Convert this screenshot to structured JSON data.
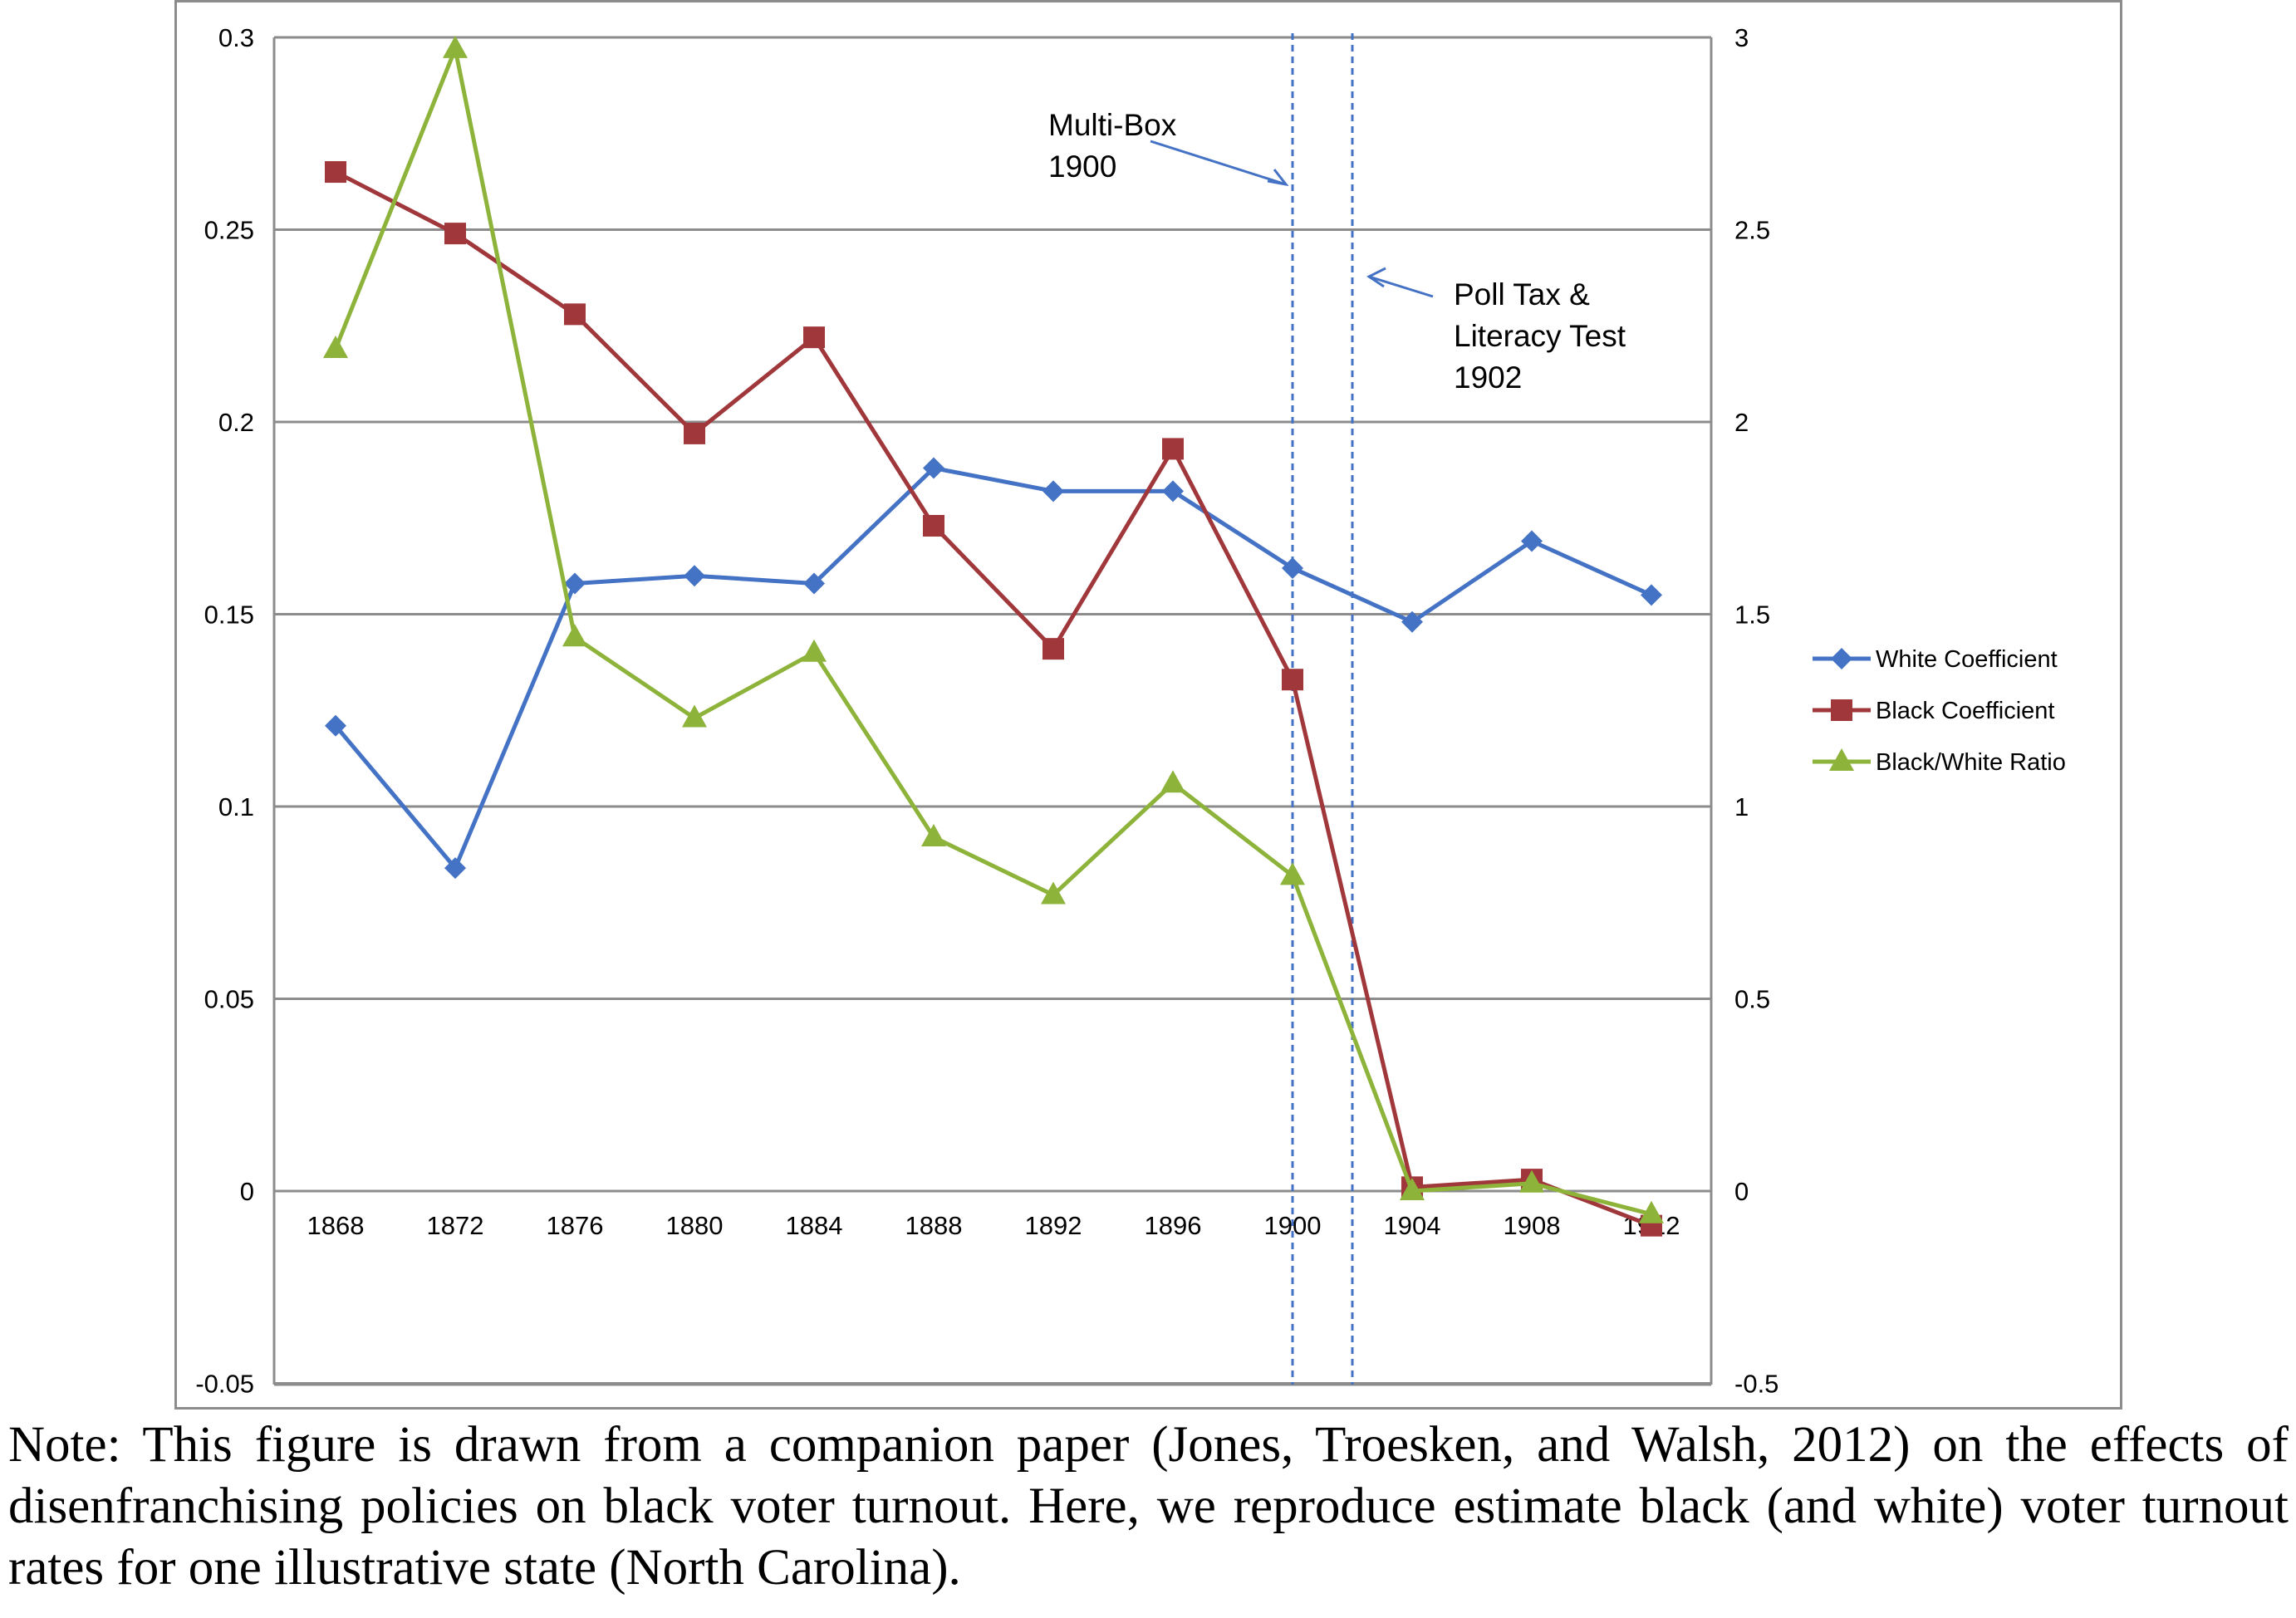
{
  "chart_data": {
    "type": "line",
    "title": "",
    "xlabel": "",
    "ylabel": "",
    "y2label": "",
    "categories": [
      "1868",
      "1872",
      "1876",
      "1880",
      "1884",
      "1888",
      "1892",
      "1896",
      "1900",
      "1904",
      "1908",
      "1912"
    ],
    "x": [
      1868,
      1872,
      1876,
      1880,
      1884,
      1888,
      1892,
      1896,
      1900,
      1904,
      1908,
      1912
    ],
    "ylim": [
      -0.05,
      0.3
    ],
    "y_ticks": [
      "-0.05",
      "0",
      "0.05",
      "0.1",
      "0.15",
      "0.2",
      "0.25",
      "0.3"
    ],
    "y_tick_values": [
      -0.05,
      0,
      0.05,
      0.1,
      0.15,
      0.2,
      0.25,
      0.3
    ],
    "y2lim": [
      -0.5,
      3
    ],
    "y2_ticks": [
      "-0.5",
      "0",
      "0.5",
      "1",
      "1.5",
      "2",
      "2.5",
      "3"
    ],
    "y2_tick_values": [
      -0.5,
      0,
      0.5,
      1,
      1.5,
      2,
      2.5,
      3
    ],
    "grid": true,
    "legend_position": "right",
    "series": [
      {
        "name": "White Coefficient",
        "axis": "left",
        "color": "#4472c4",
        "marker": "diamond",
        "values": [
          0.121,
          0.084,
          0.158,
          0.16,
          0.158,
          0.188,
          0.182,
          0.182,
          0.162,
          0.148,
          0.169,
          0.155
        ]
      },
      {
        "name": "Black Coefficient",
        "axis": "left",
        "color": "#a0373a",
        "marker": "square",
        "values": [
          0.265,
          0.249,
          0.228,
          0.197,
          0.222,
          0.173,
          0.141,
          0.193,
          0.133,
          0.001,
          0.003,
          -0.009
        ]
      },
      {
        "name": "Black/White  Ratio",
        "axis": "right",
        "color": "#8db33a",
        "marker": "triangle",
        "values": [
          2.19,
          2.97,
          1.44,
          1.23,
          1.4,
          0.92,
          0.77,
          1.06,
          0.82,
          0.0,
          0.02,
          -0.06
        ]
      }
    ],
    "reference_lines": [
      {
        "x": 1900,
        "style": "dashed",
        "color": "#4472c4"
      },
      {
        "x": 1902,
        "style": "dashed",
        "color": "#4472c4"
      }
    ],
    "annotations": [
      {
        "lines": [
          "Multi-Box",
          "1900"
        ],
        "points_to": 1900
      },
      {
        "lines": [
          "Poll Tax &",
          "Literacy Test",
          "1902"
        ],
        "points_to": 1902
      }
    ]
  },
  "note": "Note: This figure is drawn from a companion paper (Jones, Troesken, and Walsh, 2012) on the effects of disenfranchising policies on black voter turnout. Here, we reproduce estimate black (and white) voter turnout rates for one illustrative state (North Carolina)."
}
